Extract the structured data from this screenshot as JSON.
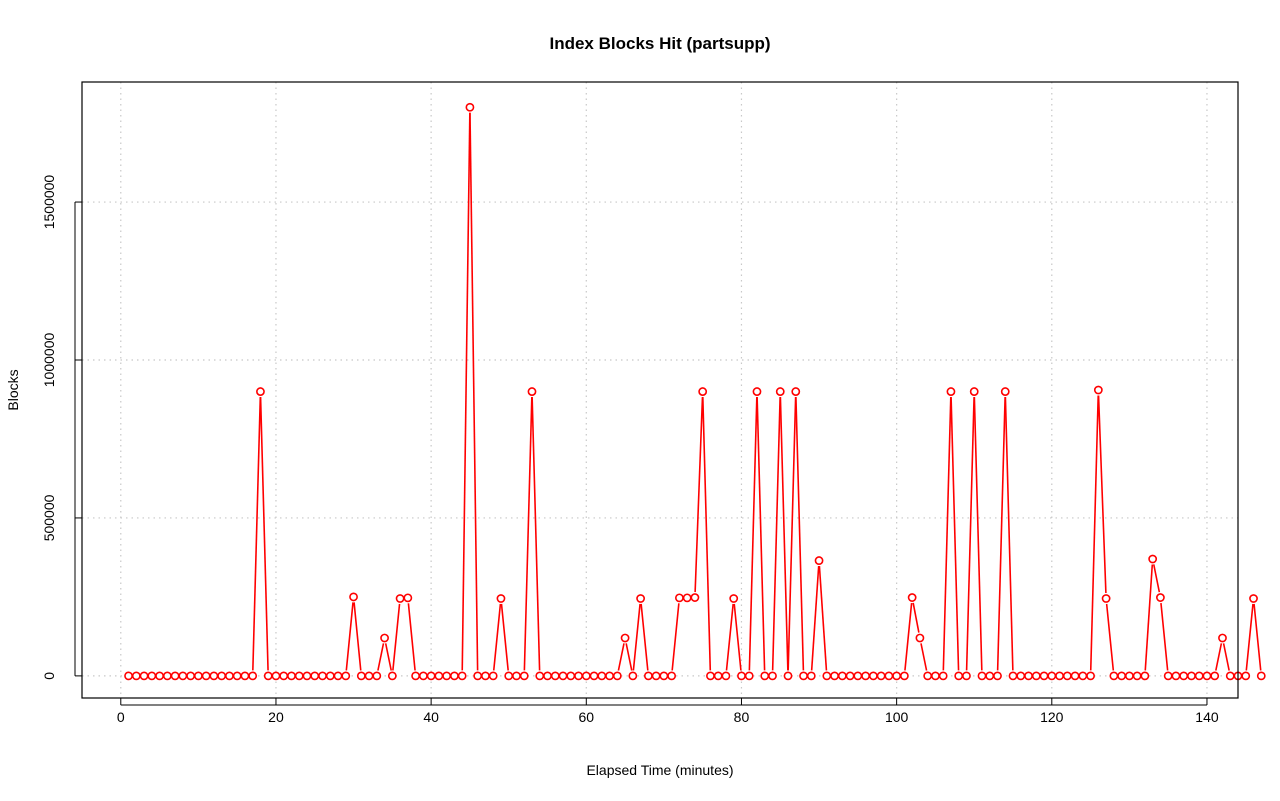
{
  "chart_data": {
    "type": "line",
    "title": "Index Blocks Hit (partsupp)",
    "xlabel": "Elapsed Time (minutes)",
    "ylabel": "Blocks",
    "xlim": [
      -5,
      144
    ],
    "ylim": [
      -70000,
      1880000
    ],
    "xticks": [
      0,
      20,
      40,
      60,
      80,
      100,
      120,
      140
    ],
    "yticks": [
      0,
      500000,
      1000000,
      1500000
    ],
    "grid": true,
    "line_color": "#ff0000",
    "series": [
      {
        "x_start": 1,
        "values": [
          0,
          0,
          0,
          0,
          0,
          0,
          0,
          0,
          0,
          0,
          0,
          0,
          0,
          0,
          0,
          0,
          0,
          900000,
          0,
          0,
          0,
          0,
          0,
          0,
          0,
          0,
          0,
          0,
          0,
          250000,
          0,
          0,
          0,
          120000,
          0,
          245000,
          247000,
          0,
          0,
          0,
          0,
          0,
          0,
          0,
          1800000,
          0,
          0,
          0,
          245000,
          0,
          0,
          0,
          900000,
          0,
          0,
          0,
          0,
          0,
          0,
          0,
          0,
          0,
          0,
          0,
          120000,
          0,
          245000,
          0,
          0,
          0,
          0,
          247000,
          247000,
          248000,
          900000,
          0,
          0,
          0,
          245000,
          0,
          0,
          900000,
          0,
          0,
          900000,
          0,
          900000,
          0,
          0,
          365000,
          0,
          0,
          0,
          0,
          0,
          0,
          0,
          0,
          0,
          0,
          0,
          248000,
          120000,
          0,
          0,
          0,
          900000,
          0,
          0,
          900000,
          0,
          0,
          0,
          900000,
          0,
          0,
          0,
          0,
          0,
          0,
          0,
          0,
          0,
          0,
          0,
          905000,
          245000,
          0,
          0,
          0,
          0,
          0,
          370000,
          248000,
          0,
          0,
          0,
          0,
          0,
          0,
          0,
          120000,
          0,
          0,
          0,
          245000,
          0
        ]
      }
    ]
  }
}
